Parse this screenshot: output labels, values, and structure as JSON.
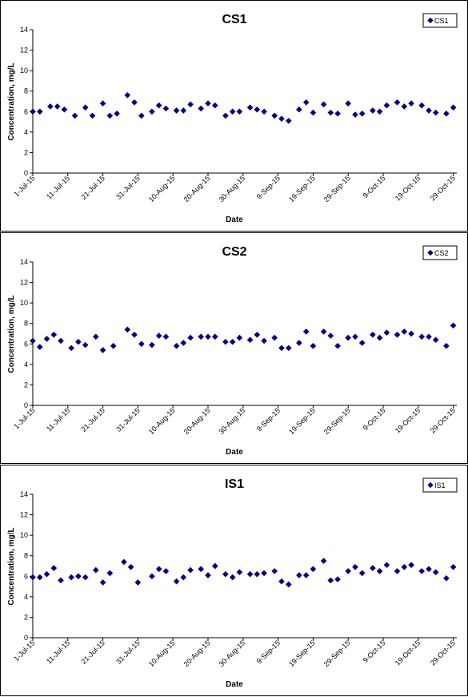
{
  "chart_data": [
    {
      "type": "scatter",
      "title": "CS1",
      "xlabel": "Date",
      "ylabel": "Concentration, mg/L",
      "ylim": [
        0,
        14
      ],
      "yticks": [
        "0",
        "2",
        "4",
        "6",
        "8",
        "10",
        "12",
        "14"
      ],
      "xlim": [
        "2015-07-01",
        "2015-10-30"
      ],
      "xticks": [
        "1-Jul-15",
        "11-Jul-15",
        "21-Jul-15",
        "31-Jul-15",
        "10-Aug-15",
        "20-Aug-15",
        "30-Aug-15",
        "9-Sep-15",
        "19-Sep-15",
        "29-Sep-15",
        "9-Oct-15",
        "19-Oct-15",
        "29-Oct-15"
      ],
      "legend": "top-right",
      "color": "#000080",
      "series": [
        {
          "name": "CS1",
          "x": [
            "2015-07-01",
            "2015-07-03",
            "2015-07-06",
            "2015-07-08",
            "2015-07-10",
            "2015-07-13",
            "2015-07-16",
            "2015-07-18",
            "2015-07-21",
            "2015-07-23",
            "2015-07-25",
            "2015-07-28",
            "2015-07-30",
            "2015-08-01",
            "2015-08-04",
            "2015-08-06",
            "2015-08-08",
            "2015-08-11",
            "2015-08-13",
            "2015-08-15",
            "2015-08-18",
            "2015-08-20",
            "2015-08-22",
            "2015-08-25",
            "2015-08-27",
            "2015-08-29",
            "2015-09-01",
            "2015-09-03",
            "2015-09-05",
            "2015-09-08",
            "2015-09-10",
            "2015-09-12",
            "2015-09-15",
            "2015-09-17",
            "2015-09-19",
            "2015-09-22",
            "2015-09-24",
            "2015-09-26",
            "2015-09-29",
            "2015-10-01",
            "2015-10-03",
            "2015-10-06",
            "2015-10-08",
            "2015-10-10",
            "2015-10-13",
            "2015-10-15",
            "2015-10-17",
            "2015-10-20",
            "2015-10-22",
            "2015-10-24",
            "2015-10-27",
            "2015-10-29"
          ],
          "y": [
            6.0,
            6.0,
            6.5,
            6.5,
            6.2,
            5.6,
            6.4,
            5.6,
            6.8,
            5.6,
            5.8,
            7.6,
            6.9,
            5.6,
            6.0,
            6.6,
            6.3,
            6.1,
            6.1,
            6.7,
            6.3,
            6.8,
            6.6,
            5.6,
            6.0,
            6.0,
            6.4,
            6.2,
            6.0,
            5.6,
            5.3,
            5.1,
            6.2,
            6.9,
            5.9,
            6.7,
            5.9,
            5.8,
            6.8,
            5.7,
            5.8,
            6.1,
            6.0,
            6.6,
            6.9,
            6.5,
            6.8,
            6.6,
            6.1,
            5.9,
            5.8,
            6.4
          ]
        }
      ]
    },
    {
      "type": "scatter",
      "title": "CS2",
      "xlabel": "Date",
      "ylabel": "Concentration, mg/L",
      "ylim": [
        0,
        14
      ],
      "yticks": [
        "0",
        "2",
        "4",
        "6",
        "8",
        "10",
        "12",
        "14"
      ],
      "xlim": [
        "2015-07-01",
        "2015-10-30"
      ],
      "xticks": [
        "1-Jul-15",
        "11-Jul-15",
        "21-Jul-15",
        "31-Jul-15",
        "10-Aug-15",
        "20-Aug-15",
        "30-Aug-15",
        "9-Sep-15",
        "19-Sep-15",
        "29-Sep-15",
        "9-Oct-15",
        "19-Oct-15",
        "29-Oct-15"
      ],
      "legend": "top-right",
      "color": "#000080",
      "series": [
        {
          "name": "CS2",
          "x": [
            "2015-07-01",
            "2015-07-03",
            "2015-07-05",
            "2015-07-07",
            "2015-07-09",
            "2015-07-12",
            "2015-07-14",
            "2015-07-16",
            "2015-07-19",
            "2015-07-21",
            "2015-07-24",
            "2015-07-28",
            "2015-07-30",
            "2015-08-01",
            "2015-08-04",
            "2015-08-06",
            "2015-08-08",
            "2015-08-11",
            "2015-08-13",
            "2015-08-15",
            "2015-08-18",
            "2015-08-20",
            "2015-08-22",
            "2015-08-25",
            "2015-08-27",
            "2015-08-29",
            "2015-09-01",
            "2015-09-03",
            "2015-09-05",
            "2015-09-08",
            "2015-09-10",
            "2015-09-12",
            "2015-09-15",
            "2015-09-17",
            "2015-09-19",
            "2015-09-22",
            "2015-09-24",
            "2015-09-26",
            "2015-09-29",
            "2015-10-01",
            "2015-10-03",
            "2015-10-06",
            "2015-10-08",
            "2015-10-10",
            "2015-10-13",
            "2015-10-15",
            "2015-10-17",
            "2015-10-20",
            "2015-10-22",
            "2015-10-24",
            "2015-10-27",
            "2015-10-29"
          ],
          "y": [
            6.3,
            5.7,
            6.5,
            6.9,
            6.3,
            5.6,
            6.2,
            5.9,
            6.7,
            5.4,
            5.8,
            7.4,
            6.9,
            6.0,
            5.9,
            6.8,
            6.7,
            5.8,
            6.1,
            6.6,
            6.7,
            6.7,
            6.7,
            6.2,
            6.2,
            6.6,
            6.4,
            6.9,
            6.3,
            6.6,
            5.6,
            5.6,
            6.1,
            7.2,
            5.8,
            7.2,
            6.8,
            5.8,
            6.6,
            6.7,
            6.1,
            6.9,
            6.6,
            7.1,
            6.9,
            7.2,
            7.0,
            6.7,
            6.7,
            6.4,
            5.8,
            7.8
          ]
        }
      ]
    },
    {
      "type": "scatter",
      "title": "IS1",
      "xlabel": "Date",
      "ylabel": "Concentration, mg/L",
      "ylim": [
        0,
        14
      ],
      "yticks": [
        "0",
        "2",
        "4",
        "6",
        "8",
        "10",
        "12",
        "14"
      ],
      "xlim": [
        "2015-07-01",
        "2015-10-30"
      ],
      "xticks": [
        "1-Jul-15",
        "11-Jul-15",
        "21-Jul-15",
        "31-Jul-15",
        "10-Aug-15",
        "20-Aug-15",
        "30-Aug-15",
        "9-Sep-15",
        "19-Sep-15",
        "29-Sep-15",
        "9-Oct-15",
        "19-Oct-15",
        "29-Oct-15"
      ],
      "legend": "top-right",
      "color": "#000080",
      "series": [
        {
          "name": "IS1",
          "x": [
            "2015-07-01",
            "2015-07-03",
            "2015-07-05",
            "2015-07-07",
            "2015-07-09",
            "2015-07-12",
            "2015-07-14",
            "2015-07-16",
            "2015-07-19",
            "2015-07-21",
            "2015-07-23",
            "2015-07-27",
            "2015-07-29",
            "2015-07-31",
            "2015-08-04",
            "2015-08-06",
            "2015-08-08",
            "2015-08-11",
            "2015-08-13",
            "2015-08-15",
            "2015-08-18",
            "2015-08-20",
            "2015-08-22",
            "2015-08-25",
            "2015-08-27",
            "2015-08-29",
            "2015-09-01",
            "2015-09-03",
            "2015-09-05",
            "2015-09-08",
            "2015-09-10",
            "2015-09-12",
            "2015-09-15",
            "2015-09-17",
            "2015-09-19",
            "2015-09-22",
            "2015-09-24",
            "2015-09-26",
            "2015-09-29",
            "2015-10-01",
            "2015-10-03",
            "2015-10-06",
            "2015-10-08",
            "2015-10-10",
            "2015-10-13",
            "2015-10-15",
            "2015-10-17",
            "2015-10-20",
            "2015-10-22",
            "2015-10-24",
            "2015-10-27",
            "2015-10-29"
          ],
          "y": [
            5.9,
            5.9,
            6.2,
            6.8,
            5.6,
            5.9,
            6.0,
            5.9,
            6.6,
            5.4,
            6.3,
            7.4,
            6.9,
            5.4,
            6.0,
            6.7,
            6.5,
            5.5,
            5.9,
            6.6,
            6.7,
            6.1,
            7.0,
            6.2,
            5.9,
            6.4,
            6.2,
            6.2,
            6.3,
            6.5,
            5.5,
            5.2,
            6.1,
            6.1,
            6.7,
            7.5,
            5.6,
            5.7,
            6.5,
            6.9,
            6.3,
            6.8,
            6.5,
            7.1,
            6.5,
            6.9,
            7.1,
            6.5,
            6.7,
            6.4,
            5.8,
            6.9
          ]
        }
      ]
    }
  ]
}
